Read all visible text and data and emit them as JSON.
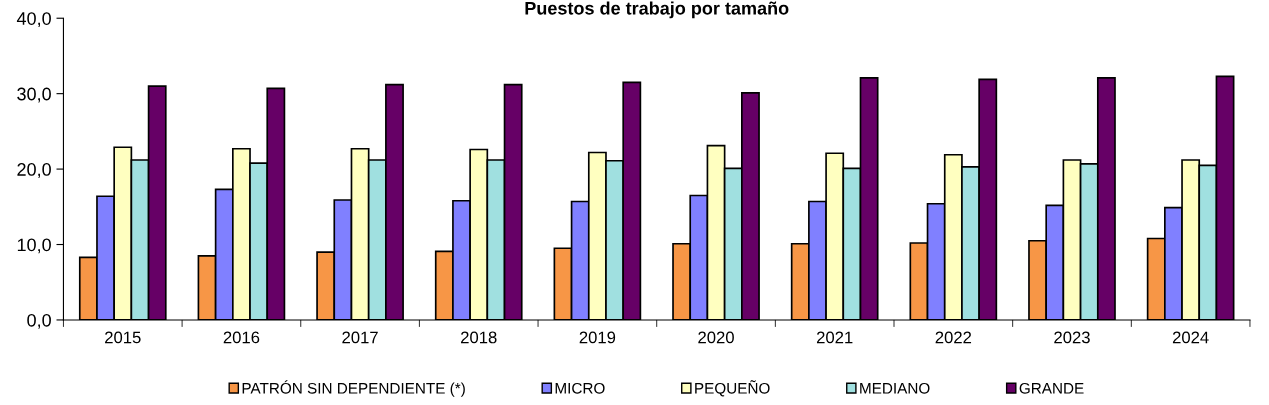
{
  "chart_data": {
    "type": "bar",
    "title": "Puestos de trabajo por tamaño",
    "categories": [
      "2015",
      "2016",
      "2017",
      "2018",
      "2019",
      "2020",
      "2021",
      "2022",
      "2023",
      "2024"
    ],
    "series": [
      {
        "name": "PATRÓN SIN DEPENDIENTE (*)",
        "color": "#f79646",
        "values": [
          8.3,
          8.5,
          9.0,
          9.1,
          9.5,
          10.1,
          10.1,
          10.2,
          10.5,
          10.8
        ]
      },
      {
        "name": "MICRO",
        "color": "#8080ff",
        "values": [
          16.4,
          17.3,
          15.9,
          15.8,
          15.7,
          16.5,
          15.7,
          15.4,
          15.2,
          14.9
        ]
      },
      {
        "name": "PEQUEÑO",
        "color": "#ffffc0",
        "values": [
          22.9,
          22.7,
          22.7,
          22.6,
          22.2,
          23.1,
          22.1,
          21.9,
          21.2,
          21.2
        ]
      },
      {
        "name": "MEDIANO",
        "color": "#a0e0e0",
        "values": [
          21.2,
          20.8,
          21.2,
          21.2,
          21.1,
          20.1,
          20.1,
          20.3,
          20.7,
          20.5
        ]
      },
      {
        "name": "GRANDE",
        "color": "#660066",
        "values": [
          31.0,
          30.7,
          31.2,
          31.2,
          31.5,
          30.1,
          32.1,
          31.9,
          32.1,
          32.3
        ]
      }
    ],
    "ylim": [
      0,
      40
    ],
    "yticks": [
      {
        "value": 0,
        "label": "0,0"
      },
      {
        "value": 10,
        "label": "10,0"
      },
      {
        "value": 20,
        "label": "20,0"
      },
      {
        "value": 30,
        "label": "30,0"
      },
      {
        "value": 40,
        "label": "40,0"
      }
    ],
    "grid": false,
    "legend": "bottom"
  }
}
